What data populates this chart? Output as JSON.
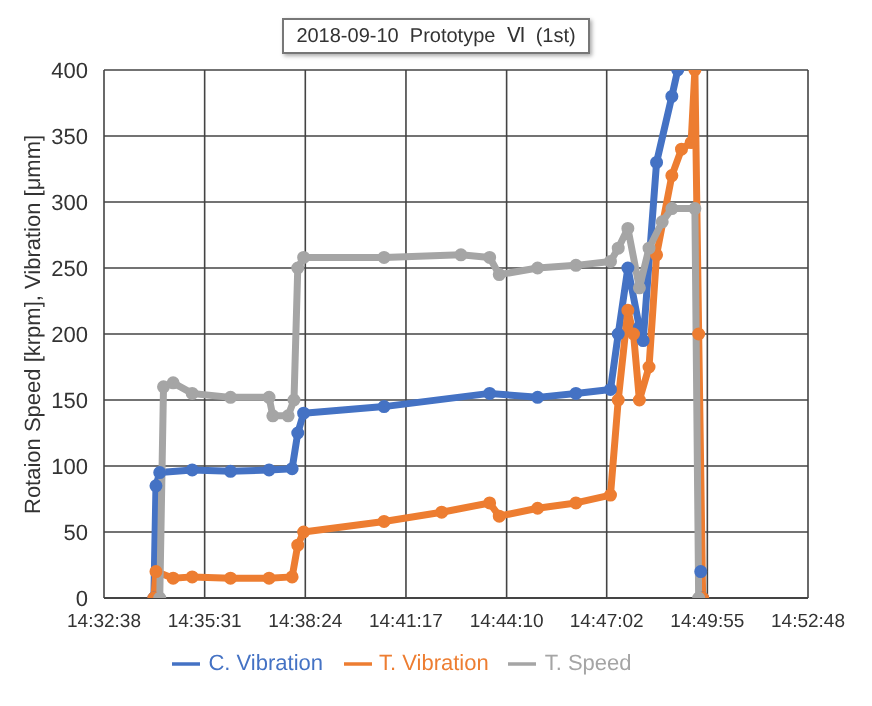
{
  "chart_data": {
    "type": "line",
    "title": "2018-09-10  Prototype  Ⅵ  (1st)",
    "ylabel": "Rotaion Speed [krpm],  Vibration [μmm]",
    "xlim": [
      14.543889,
      14.88
    ],
    "xticks": [
      {
        "value": 14.543889,
        "label": "14:32:38"
      },
      {
        "value": 14.591944,
        "label": "14:35:31"
      },
      {
        "value": 14.64,
        "label": "14:38:24"
      },
      {
        "value": 14.688056,
        "label": "14:41:17"
      },
      {
        "value": 14.736111,
        "label": "14:44:10"
      },
      {
        "value": 14.783889,
        "label": "14:47:02"
      },
      {
        "value": 14.831944,
        "label": "14:49:55"
      },
      {
        "value": 14.88,
        "label": "14:52:48"
      }
    ],
    "ylim": [
      0,
      400
    ],
    "yticks": [
      0,
      50,
      100,
      150,
      200,
      250,
      300,
      350,
      400
    ],
    "grid": true,
    "legend": "bottom",
    "marker": "circle",
    "line_style": "solid",
    "series": [
      {
        "name": "C. Vibration",
        "color": "#4472c4",
        "x": [
          14.5677,
          14.5687,
          14.5705,
          14.586,
          14.6043,
          14.6227,
          14.6337,
          14.6364,
          14.6392,
          14.6776,
          14.728,
          14.7509,
          14.7692,
          14.7857,
          14.7894,
          14.794,
          14.7995,
          14.8013,
          14.8077,
          14.815,
          14.8178,
          14.8223,
          14.8288,
          14.8297
        ],
        "values": [
          0,
          85,
          95,
          97,
          96,
          97,
          98,
          125,
          140,
          145,
          155,
          152,
          155,
          158,
          200,
          250,
          205,
          195,
          330,
          380,
          400,
          null,
          20,
          0
        ]
      },
      {
        "name": "T. Vibration",
        "color": "#ed7d31",
        "x": [
          14.5677,
          14.5687,
          14.5769,
          14.586,
          14.6043,
          14.6227,
          14.6337,
          14.6364,
          14.6392,
          14.6776,
          14.7051,
          14.728,
          14.7326,
          14.7509,
          14.7692,
          14.7857,
          14.7894,
          14.794,
          14.7967,
          14.7995,
          14.8041,
          14.8077,
          14.815,
          14.8196,
          14.8242,
          14.826,
          14.8278,
          14.8297
        ],
        "values": [
          0,
          20,
          15,
          16,
          15,
          15,
          16,
          40,
          50,
          58,
          65,
          72,
          62,
          68,
          72,
          78,
          150,
          218,
          200,
          150,
          175,
          260,
          320,
          340,
          345,
          400,
          200,
          0
        ]
      },
      {
        "name": "T. Speed",
        "color": "#a5a5a5",
        "x": [
          14.5705,
          14.5723,
          14.5769,
          14.586,
          14.6043,
          14.6227,
          14.6245,
          14.6318,
          14.6346,
          14.6364,
          14.6392,
          14.6776,
          14.7143,
          14.728,
          14.7326,
          14.7509,
          14.7692,
          14.7857,
          14.7894,
          14.794,
          14.7995,
          14.8041,
          14.8104,
          14.815,
          14.826,
          14.8278
        ],
        "values": [
          0,
          160,
          163,
          155,
          152,
          152,
          138,
          138,
          150,
          250,
          258,
          258,
          260,
          258,
          245,
          250,
          252,
          255,
          265,
          280,
          235,
          265,
          285,
          295,
          295,
          0
        ]
      }
    ]
  }
}
